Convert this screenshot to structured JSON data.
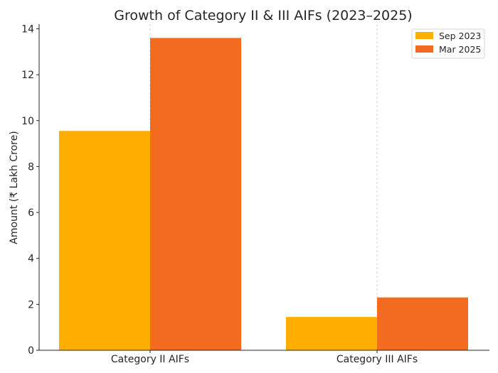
{
  "chart_data": {
    "type": "bar",
    "title": "Growth of Category II & III AIFs (2023–2025)",
    "xlabel": "",
    "ylabel": "Amount (₹ Lakh Crore)",
    "categories": [
      "Category II AIFs",
      "Category III AIFs"
    ],
    "series": [
      {
        "name": "Sep 2023",
        "values": [
          9.55,
          1.45
        ],
        "color": "#FFAE00"
      },
      {
        "name": "Mar 2025",
        "values": [
          13.6,
          2.3
        ],
        "color": "#F26B21"
      }
    ],
    "ylim": [
      0,
      14.2
    ],
    "yticks": [
      "0",
      "2",
      "4",
      "6",
      "8",
      "10",
      "12",
      "14"
    ],
    "grid": "vertical-dashed",
    "legend_position": "top-right"
  }
}
